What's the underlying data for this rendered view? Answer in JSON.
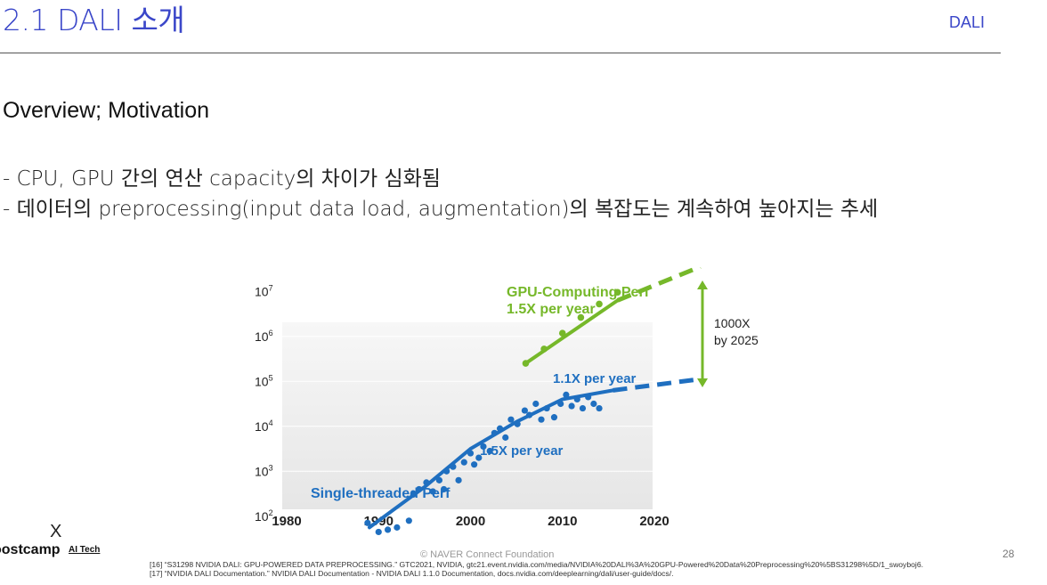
{
  "header": {
    "title": "2.1 DALI 소개",
    "tag": "DALI"
  },
  "section": {
    "heading": "Overview; Motivation",
    "bullets": [
      "- CPU, GPU 간의 연산 capacity의 차이가 심화됨",
      "- 데이터의 preprocessing(input data load, augmentation)의 복잡도는 계속하여 높아지는 추세"
    ]
  },
  "chart_data": {
    "type": "scatter",
    "title": "",
    "xlabel": "",
    "ylabel": "",
    "xlim": [
      1980,
      2020
    ],
    "ylim_log10": [
      1.5,
      7.5
    ],
    "x_ticks": [
      "1980",
      "1990",
      "2000",
      "2010",
      "2020"
    ],
    "y_ticks": [
      {
        "base": "10",
        "exp": "2",
        "v": 2
      },
      {
        "base": "10",
        "exp": "3",
        "v": 3
      },
      {
        "base": "10",
        "exp": "4",
        "v": 4
      },
      {
        "base": "10",
        "exp": "5",
        "v": 5
      },
      {
        "base": "10",
        "exp": "6",
        "v": 6
      },
      {
        "base": "10",
        "exp": "7",
        "v": 7
      }
    ],
    "series": [
      {
        "name": "Single-threaded Perf",
        "color": "#1f6fc0",
        "trend": [
          [
            1989,
            1.75
          ],
          [
            1995,
            2.65
          ],
          [
            2000,
            3.5
          ],
          [
            2005,
            4.1
          ],
          [
            2010,
            4.6
          ],
          [
            2015.5,
            4.8
          ]
        ],
        "projection": [
          [
            2015.5,
            4.8
          ],
          [
            2025,
            5.05
          ]
        ],
        "points": [
          [
            1988.8,
            1.85
          ],
          [
            1990,
            1.65
          ],
          [
            1991,
            1.7
          ],
          [
            1992,
            1.75
          ],
          [
            1993.3,
            1.9
          ],
          [
            1993.8,
            2.5
          ],
          [
            1994.4,
            2.6
          ],
          [
            1995.2,
            2.75
          ],
          [
            1995.9,
            2.55
          ],
          [
            1996.6,
            2.8
          ],
          [
            1997.1,
            2.6
          ],
          [
            1997.4,
            3.0
          ],
          [
            1998.1,
            3.1
          ],
          [
            1998.7,
            2.8
          ],
          [
            1999.3,
            3.2
          ],
          [
            2000,
            3.4
          ],
          [
            2000.4,
            3.15
          ],
          [
            2000.9,
            3.3
          ],
          [
            2001.4,
            3.55
          ],
          [
            2002.1,
            3.45
          ],
          [
            2002.6,
            3.85
          ],
          [
            2003.2,
            3.95
          ],
          [
            2003.8,
            3.75
          ],
          [
            2004.4,
            4.15
          ],
          [
            2005.1,
            4.05
          ],
          [
            2005.9,
            4.35
          ],
          [
            2006.4,
            4.25
          ],
          [
            2007.1,
            4.5
          ],
          [
            2007.7,
            4.15
          ],
          [
            2008.3,
            4.4
          ],
          [
            2009.1,
            4.2
          ],
          [
            2009.8,
            4.5
          ],
          [
            2010.4,
            4.7
          ],
          [
            2011,
            4.45
          ],
          [
            2011.6,
            4.6
          ],
          [
            2012.2,
            4.4
          ],
          [
            2012.8,
            4.65
          ],
          [
            2013.4,
            4.5
          ],
          [
            2014,
            4.4
          ]
        ],
        "labels": [
          "1.5X per year",
          "1.1X per year"
        ]
      },
      {
        "name": "GPU-Computing Perf",
        "color": "#76b82a",
        "trend": [
          [
            2006,
            5.4
          ],
          [
            2016,
            6.8
          ]
        ],
        "projection": [
          [
            2016,
            6.8
          ],
          [
            2025,
            7.55
          ]
        ],
        "points": [
          [
            2006,
            5.4
          ],
          [
            2008,
            5.72
          ],
          [
            2010,
            6.07
          ],
          [
            2012,
            6.42
          ],
          [
            2014,
            6.72
          ],
          [
            2016,
            6.98
          ]
        ],
        "labels": [
          "1.5X per year"
        ]
      }
    ],
    "annotations": [
      "1000X",
      "by 2025"
    ]
  },
  "footer": {
    "logo_mark": "X",
    "logo": "oostcamp",
    "logo_sub": "AI Tech",
    "copyright": "©  NAVER Connect Foundation",
    "page": "28",
    "refs": [
      "[16] “S31298 NVIDIA DALI: GPU-POWERED DATA PREPROCESSING.” GTC2021, NVIDIA, gtc21.event.nvidia.com/media/NVIDIA%20DALI%3A%20GPU-Powered%20Data%20Preprocessing%20%5BS31298%5D/1_swoyboj6.",
      "[17] “NVIDIA DALI Documentation.” NVIDIA DALI Documentation - NVIDIA DALI 1.1.0 Documentation, docs.nvidia.com/deeplearning/dali/user-guide/docs/."
    ]
  }
}
